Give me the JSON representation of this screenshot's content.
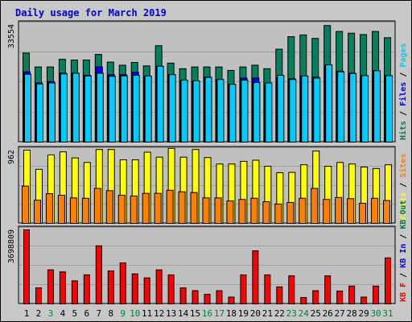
{
  "title": "Daily usage for March 2019",
  "colors": {
    "hits": "#00805c",
    "files": "#0000ff",
    "pages": "#00ccff",
    "visits": "#ffff00",
    "sites": "#ff8000",
    "kbin": "#008040",
    "kbout": "#ff0000",
    "kbf": "#ff0000",
    "weekend_day": "#008040"
  },
  "chart_data": [
    {
      "type": "bar",
      "title": "",
      "ylabel_max": "33554",
      "ylim": [
        0,
        33554
      ],
      "legend": [
        {
          "label": "Hits",
          "color_key": "hits"
        },
        {
          "label": " / ",
          "color_key": "none"
        },
        {
          "label": "Files",
          "color_key": "files"
        },
        {
          "label": " / ",
          "color_key": "none"
        },
        {
          "label": "Pages",
          "color_key": "pages"
        }
      ],
      "categories": [
        "1",
        "2",
        "3",
        "4",
        "5",
        "6",
        "7",
        "8",
        "9",
        "10",
        "11",
        "12",
        "13",
        "14",
        "15",
        "16",
        "17",
        "18",
        "19",
        "20",
        "21",
        "22",
        "23",
        "24",
        "25",
        "26",
        "27",
        "28",
        "29",
        "30",
        "31"
      ],
      "series": [
        {
          "name": "Hits",
          "values": [
            25600,
            21600,
            21600,
            23800,
            23600,
            23600,
            25200,
            23000,
            22100,
            22900,
            21900,
            27700,
            22700,
            21100,
            21600,
            21600,
            21600,
            20600,
            21600,
            22100,
            21100,
            26700,
            30300,
            30800,
            29800,
            33500,
            31800,
            31300,
            30900,
            31800,
            30000
          ]
        },
        {
          "name": "Files",
          "values": [
            20200,
            17000,
            17400,
            19800,
            19800,
            19200,
            21600,
            19400,
            19400,
            20100,
            18800,
            21800,
            19300,
            17700,
            17600,
            18700,
            17800,
            16600,
            18400,
            18400,
            16500,
            18400,
            18200,
            18900,
            18700,
            21900,
            20400,
            19800,
            19100,
            20500,
            19100
          ]
        },
        {
          "name": "Pages",
          "values": [
            19500,
            16700,
            17000,
            19600,
            19800,
            19000,
            19800,
            18900,
            19000,
            19200,
            19000,
            21800,
            19400,
            17800,
            17600,
            18600,
            18000,
            16600,
            17800,
            17100,
            17000,
            19200,
            18000,
            19000,
            18400,
            22200,
            20200,
            19700,
            19100,
            20500,
            19100
          ]
        }
      ]
    },
    {
      "type": "bar",
      "title": "",
      "ylabel_max": "962",
      "ylim": [
        0,
        962
      ],
      "legend": [
        {
          "label": "Visits",
          "color_key": "visits"
        },
        {
          "label": " / ",
          "color_key": "none"
        },
        {
          "label": "Sites",
          "color_key": "sites"
        }
      ],
      "categories": [
        "1",
        "2",
        "3",
        "4",
        "5",
        "6",
        "7",
        "8",
        "9",
        "10",
        "11",
        "12",
        "13",
        "14",
        "15",
        "16",
        "17",
        "18",
        "19",
        "20",
        "21",
        "22",
        "23",
        "24",
        "25",
        "26",
        "27",
        "28",
        "29",
        "30",
        "31"
      ],
      "series": [
        {
          "name": "Visits",
          "values": [
            962,
            710,
            900,
            940,
            860,
            800,
            970,
            970,
            835,
            835,
            935,
            870,
            985,
            870,
            970,
            865,
            780,
            780,
            815,
            830,
            750,
            665,
            670,
            770,
            950,
            750,
            800,
            780,
            740,
            720,
            770
          ]
        },
        {
          "name": "Sites",
          "values": [
            490,
            305,
            390,
            370,
            335,
            330,
            460,
            430,
            370,
            360,
            395,
            395,
            435,
            415,
            405,
            335,
            335,
            295,
            315,
            330,
            285,
            255,
            275,
            330,
            460,
            315,
            340,
            325,
            265,
            330,
            300
          ]
        }
      ]
    },
    {
      "type": "bar",
      "title": "",
      "ylabel_max": "3698809",
      "ylim": [
        0,
        3698809
      ],
      "legend": [
        {
          "label": "KB F",
          "color_key": "kbf"
        },
        {
          "label": " / ",
          "color_key": "none"
        },
        {
          "label": "KB In",
          "color_key": "files"
        },
        {
          "label": " / ",
          "color_key": "none"
        },
        {
          "label": "KB Out",
          "color_key": "kbin"
        }
      ],
      "categories": [
        "1",
        "2",
        "3",
        "4",
        "5",
        "6",
        "7",
        "8",
        "9",
        "10",
        "11",
        "12",
        "13",
        "14",
        "15",
        "16",
        "17",
        "18",
        "19",
        "20",
        "21",
        "22",
        "23",
        "24",
        "25",
        "26",
        "27",
        "28",
        "29",
        "30",
        "31"
      ],
      "series": [
        {
          "name": "KB F",
          "values": [
            3698809,
            800000,
            1700000,
            1600000,
            1150000,
            1450000,
            2900000,
            1650000,
            2050000,
            1500000,
            1300000,
            1700000,
            1450000,
            800000,
            660000,
            480000,
            660000,
            340000,
            1450000,
            2650000,
            1450000,
            850000,
            1400000,
            320000,
            660000,
            1400000,
            640000,
            890000,
            340000,
            890000,
            2300000
          ]
        }
      ]
    }
  ],
  "weekend_days": [
    "3",
    "9",
    "10",
    "16",
    "17",
    "23",
    "24",
    "30",
    "31"
  ]
}
